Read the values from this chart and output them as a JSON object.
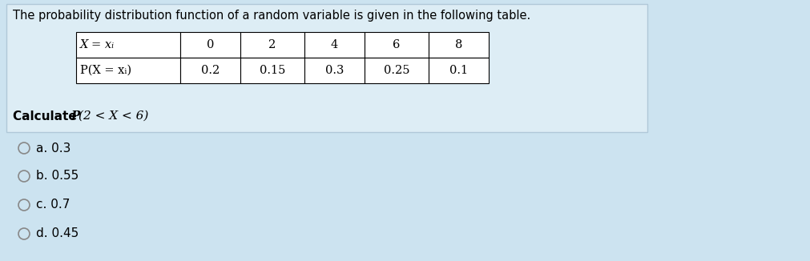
{
  "background_color": "#cce3f0",
  "panel_facecolor": "#ddedf5",
  "panel_edgecolor": "#b0c8d8",
  "title_text": "The probability distribution function of a random variable is given in the following table.",
  "row1": [
    "X = xᵢ",
    "0",
    "2",
    "4",
    "6",
    "8"
  ],
  "row2": [
    "P(X = xᵢ)",
    "0.2",
    "0.15",
    "0.3",
    "0.25",
    "0.1"
  ],
  "calculate_text_normal": "Calculate ",
  "calculate_text_italic": "P",
  "calculate_text_rest": "(2 < X < 6)",
  "options": [
    {
      "label": "a.",
      "value": "0.3"
    },
    {
      "label": "b.",
      "value": "0.55"
    },
    {
      "label": "c.",
      "value": "0.7"
    },
    {
      "label": "d.",
      "value": "0.45"
    }
  ],
  "title_fontsize": 10.5,
  "table_fontsize": 10.5,
  "calc_fontsize": 11,
  "option_fontsize": 11
}
